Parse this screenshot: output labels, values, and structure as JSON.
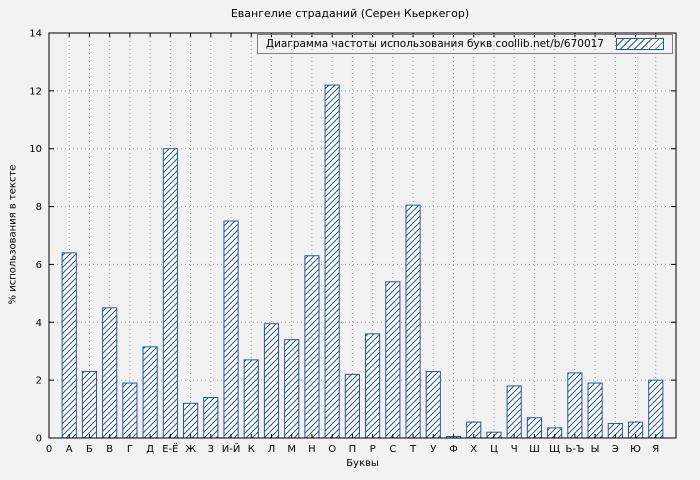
{
  "chart_data": {
    "type": "bar",
    "title": "Евангелие страданий (Серен Кьеркегор)",
    "legend_label": "Диаграмма частоты использования букв coollib.net/b/670017",
    "xlabel": "Буквы",
    "ylabel": "% использования в тексте",
    "origin_label": "0",
    "categories": [
      "А",
      "Б",
      "В",
      "Г",
      "Д",
      "Е-Ё",
      "Ж",
      "З",
      "И-Й",
      "К",
      "Л",
      "М",
      "Н",
      "О",
      "П",
      "Р",
      "С",
      "Т",
      "У",
      "Ф",
      "Х",
      "Ц",
      "Ч",
      "Ш",
      "Щ",
      "Ь-Ъ",
      "Ы",
      "Э",
      "Ю",
      "Я"
    ],
    "values": [
      6.4,
      2.3,
      4.5,
      1.9,
      3.15,
      10.0,
      1.2,
      1.4,
      7.5,
      2.7,
      3.95,
      3.4,
      6.3,
      12.2,
      2.2,
      3.6,
      5.4,
      8.05,
      2.3,
      0.05,
      0.55,
      0.2,
      1.8,
      0.7,
      0.35,
      2.25,
      1.9,
      0.5,
      0.55,
      2.0
    ],
    "yticks": [
      0,
      2,
      4,
      6,
      8,
      10,
      12,
      14
    ],
    "ylim": [
      0,
      14
    ],
    "grid": true,
    "legend_position": "top-right",
    "hatch_style": "diagonal",
    "colors": {
      "bar": "#2457a4",
      "axis": "#000000",
      "grid": "#9a9a9a",
      "background": "#f2f2f2",
      "text": "#000000"
    }
  }
}
